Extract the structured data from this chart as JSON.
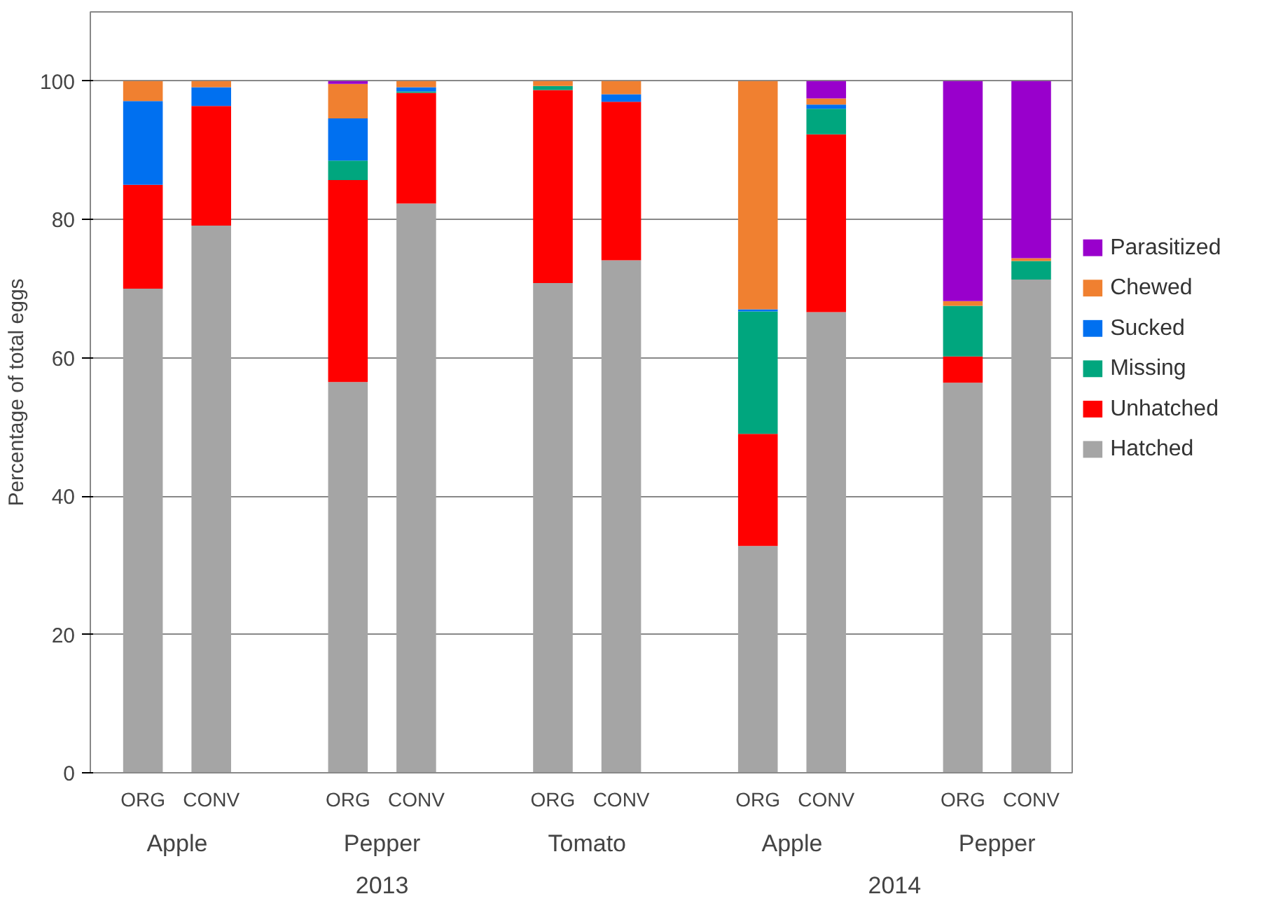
{
  "chart_data": {
    "type": "bar",
    "stacked": true,
    "ylabel": "Percentage of total eggs",
    "categories": [
      "ORG",
      "CONV",
      "ORG",
      "CONV",
      "ORG",
      "CONV",
      "ORG",
      "CONV",
      "ORG",
      "CONV"
    ],
    "series": [
      {
        "name": "Hatched",
        "color": "#a5a5a5",
        "values": [
          70,
          79.1,
          56.5,
          82.3,
          70.8,
          74.1,
          32.8,
          66.6,
          56.4,
          71.3
        ]
      },
      {
        "name": "Unhatched",
        "color": "#ff0000",
        "values": [
          15,
          17.3,
          29.2,
          16,
          27.9,
          22.9,
          16.2,
          25.7,
          3.8,
          0
        ]
      },
      {
        "name": "Missing",
        "color": "#00a67e",
        "values": [
          0,
          0,
          2.8,
          0.2,
          0.6,
          0,
          17.7,
          3.7,
          7.3,
          2.7
        ]
      },
      {
        "name": "Sucked",
        "color": "#0070f0",
        "values": [
          12.1,
          2.7,
          6.1,
          0.6,
          0,
          1.1,
          0.3,
          0.6,
          0,
          0
        ]
      },
      {
        "name": "Chewed",
        "color": "#f08030",
        "values": [
          2.9,
          0.9,
          5,
          0.9,
          0.7,
          1.9,
          33,
          0.9,
          0.7,
          0.4
        ]
      },
      {
        "name": "Parasitized",
        "color": "#9900cc",
        "values": [
          0,
          0,
          0.4,
          0,
          0,
          0,
          0,
          2.5,
          31.8,
          25.6
        ]
      }
    ],
    "ylim": [
      0,
      110
    ],
    "yticks": [
      0,
      20,
      40,
      60,
      80,
      100
    ],
    "grid": "y",
    "legend": "right",
    "annotations": [
      "Apple",
      "Pepper",
      "Tomato",
      "Apple",
      "Pepper",
      "2013",
      "2014"
    ]
  }
}
